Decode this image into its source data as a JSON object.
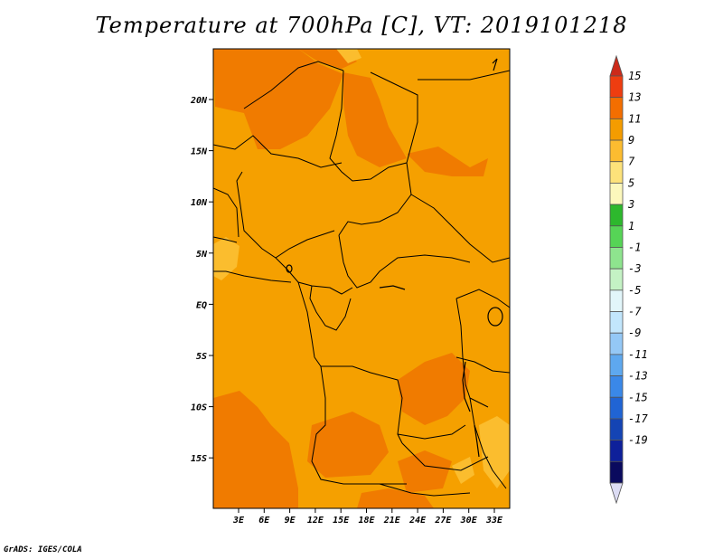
{
  "title": "Temperature at 700hPa [C], VT: 2019101218",
  "credit": "GrADS: IGES/COLA",
  "map": {
    "lon_labels": [
      "3E",
      "6E",
      "9E",
      "12E",
      "15E",
      "18E",
      "21E",
      "24E",
      "27E",
      "30E",
      "33E"
    ],
    "lat_labels": [
      "20N",
      "15N",
      "10N",
      "5N",
      "EQ",
      "5S",
      "10S",
      "15S"
    ],
    "fill_colors": {
      "base": "#f5a000",
      "warm": "#f07b00",
      "cool": "#fbbd2e"
    }
  },
  "colorbar": {
    "labels": [
      "15",
      "13",
      "11",
      "9",
      "7",
      "5",
      "3",
      "1",
      "-1",
      "-3",
      "-5",
      "-7",
      "-9",
      "-11",
      "-13",
      "-15",
      "-17",
      "-19"
    ],
    "colors": [
      "#cc2a1a",
      "#ee3d10",
      "#f36e00",
      "#f49c00",
      "#fcbc30",
      "#fde27a",
      "#fcf8bc",
      "#2db82d",
      "#56d456",
      "#8ee48e",
      "#c4f2c4",
      "#e2f6fa",
      "#c2e6fc",
      "#94c8f6",
      "#5ea8ef",
      "#3a88e8",
      "#2064d4",
      "#1444b4",
      "#0e209a",
      "#0a0a5e",
      "#dcdcf4"
    ]
  }
}
